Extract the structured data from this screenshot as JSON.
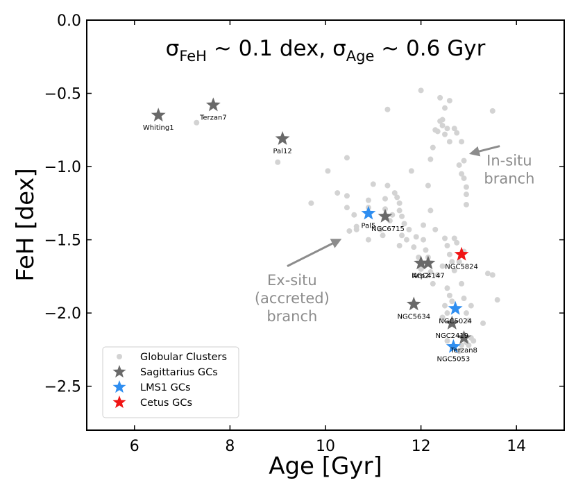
{
  "chart_data": {
    "type": "scatter",
    "title": {
      "sym1": "σ",
      "sub1": "FeH",
      "mid1": " ~ 0.1 dex, ",
      "sym2": "σ",
      "sub2": "Age",
      "mid2": " ~ 0.6 Gyr"
    },
    "xlabel": "Age [Gyr]",
    "ylabel": "FeH [dex]",
    "xlim": [
      5,
      15
    ],
    "ylim": [
      -2.8,
      0.0
    ],
    "xticks": [
      6,
      8,
      10,
      12,
      14
    ],
    "yticks": [
      0.0,
      -0.5,
      -1.0,
      -1.5,
      -2.0,
      -2.5
    ],
    "xtick_labels": [
      "6",
      "8",
      "10",
      "12",
      "14"
    ],
    "ytick_labels": [
      "0.0",
      "−0.5",
      "−1.0",
      "−1.5",
      "−2.0",
      "−2.5"
    ],
    "legend": {
      "position": "lower-left",
      "entries": [
        "Globular Clusters",
        "Sagittarius GCs",
        "LMS1 GCs",
        "Cetus GCs"
      ]
    },
    "annotations": [
      {
        "lines": [
          "In-situ",
          "branch"
        ],
        "text_at": [
          13.85,
          -1.02
        ],
        "arrow_from": [
          13.65,
          -0.86
        ],
        "arrow_to": [
          13.05,
          -0.91
        ]
      },
      {
        "lines": [
          "Ex-situ",
          "(accreted)",
          "branch"
        ],
        "text_at": [
          9.3,
          -1.9
        ],
        "arrow_from": [
          9.2,
          -1.68
        ],
        "arrow_to": [
          10.3,
          -1.5
        ]
      }
    ],
    "colors": {
      "gc": "#d3d3d3",
      "sagittarius": "#696969",
      "lms1": "#2f8ef0",
      "cetus": "#f01414",
      "annotation": "#8c8c8c"
    },
    "series": [
      {
        "name": "Globular Clusters",
        "marker": "circle",
        "points": [
          [
            7.3,
            -0.7
          ],
          [
            9.0,
            -0.97
          ],
          [
            9.7,
            -1.25
          ],
          [
            10.05,
            -1.03
          ],
          [
            10.25,
            -1.18
          ],
          [
            10.45,
            -1.2
          ],
          [
            10.45,
            -1.28
          ],
          [
            10.45,
            -0.94
          ],
          [
            10.6,
            -1.33
          ],
          [
            10.65,
            -1.41
          ],
          [
            10.65,
            -1.43
          ],
          [
            10.9,
            -1.23
          ],
          [
            11.0,
            -1.12
          ],
          [
            10.9,
            -1.5
          ],
          [
            10.9,
            -1.28
          ],
          [
            11.15,
            -1.43
          ],
          [
            11.2,
            -1.47
          ],
          [
            11.25,
            -1.29
          ],
          [
            11.25,
            -1.22
          ],
          [
            11.3,
            -1.13
          ],
          [
            11.35,
            -1.37
          ],
          [
            11.4,
            -1.33
          ],
          [
            11.45,
            -1.18
          ],
          [
            11.5,
            -1.21
          ],
          [
            11.55,
            -1.25
          ],
          [
            11.55,
            -1.3
          ],
          [
            11.6,
            -1.34
          ],
          [
            11.6,
            -1.47
          ],
          [
            11.65,
            -1.39
          ],
          [
            11.7,
            -1.5
          ],
          [
            11.75,
            -1.43
          ],
          [
            11.3,
            -0.61
          ],
          [
            11.8,
            -1.03
          ],
          [
            11.85,
            -1.55
          ],
          [
            11.9,
            -1.48
          ],
          [
            11.95,
            -1.62
          ],
          [
            12.0,
            -1.7
          ],
          [
            12.05,
            -1.4
          ],
          [
            12.05,
            -1.5
          ],
          [
            12.1,
            -1.57
          ],
          [
            12.15,
            -1.62
          ],
          [
            12.2,
            -1.72
          ],
          [
            12.25,
            -1.8
          ],
          [
            12.3,
            -1.43
          ],
          [
            12.35,
            -1.74
          ],
          [
            12.15,
            -1.13
          ],
          [
            12.2,
            -0.95
          ],
          [
            12.25,
            -0.87
          ],
          [
            12.3,
            -0.75
          ],
          [
            12.35,
            -0.76
          ],
          [
            12.4,
            -0.69
          ],
          [
            12.45,
            -0.68
          ],
          [
            12.5,
            -0.6
          ],
          [
            12.55,
            -0.74
          ],
          [
            12.6,
            -0.55
          ],
          [
            12.45,
            -0.72
          ],
          [
            12.6,
            -0.83
          ],
          [
            12.4,
            -0.53
          ],
          [
            12.0,
            -0.48
          ],
          [
            12.5,
            -0.78
          ],
          [
            12.7,
            -0.74
          ],
          [
            12.75,
            -0.77
          ],
          [
            12.85,
            -0.83
          ],
          [
            12.8,
            -0.99
          ],
          [
            12.9,
            -0.96
          ],
          [
            12.85,
            -1.05
          ],
          [
            12.9,
            -1.08
          ],
          [
            12.95,
            -1.14
          ],
          [
            12.95,
            -1.19
          ],
          [
            12.95,
            -1.26
          ],
          [
            13.5,
            -0.62
          ],
          [
            12.2,
            -1.3
          ],
          [
            12.5,
            -1.49
          ],
          [
            12.55,
            -1.54
          ],
          [
            12.6,
            -1.6
          ],
          [
            12.65,
            -1.65
          ],
          [
            12.7,
            -1.49
          ],
          [
            12.75,
            -1.52
          ],
          [
            12.7,
            -1.71
          ],
          [
            12.55,
            -1.83
          ],
          [
            12.6,
            -1.88
          ],
          [
            12.65,
            -1.92
          ],
          [
            12.45,
            -1.68
          ],
          [
            12.5,
            -1.95
          ],
          [
            12.55,
            -2.0
          ],
          [
            12.45,
            -2.03
          ],
          [
            12.8,
            -1.65
          ],
          [
            12.85,
            -1.8
          ],
          [
            12.9,
            -1.9
          ],
          [
            12.95,
            -2.0
          ],
          [
            13.0,
            -2.05
          ],
          [
            13.05,
            -1.95
          ],
          [
            12.55,
            -2.19
          ],
          [
            12.8,
            -2.26
          ],
          [
            12.85,
            -2.22
          ],
          [
            12.9,
            -2.15
          ],
          [
            12.95,
            -2.2
          ],
          [
            13.0,
            -2.22
          ],
          [
            13.05,
            -2.17
          ],
          [
            13.1,
            -2.19
          ],
          [
            13.3,
            -2.07
          ],
          [
            13.4,
            -1.73
          ],
          [
            13.5,
            -1.74
          ],
          [
            13.6,
            -1.91
          ],
          [
            12.9,
            -1.58
          ],
          [
            10.5,
            -1.44
          ],
          [
            11.55,
            -1.54
          ]
        ]
      },
      {
        "name": "Sagittarius GCs",
        "marker": "star",
        "points": [
          {
            "x": 6.5,
            "y": -0.65,
            "label": "Whiting1",
            "pos": "below"
          },
          {
            "x": 7.65,
            "y": -0.58,
            "label": "Terzan7",
            "pos": "below"
          },
          {
            "x": 9.1,
            "y": -0.81,
            "label": "Pal12",
            "pos": "below"
          },
          {
            "x": 11.25,
            "y": -1.34,
            "label": "NGC6715",
            "pos": "below-left"
          },
          {
            "x": 12.0,
            "y": -1.66,
            "label": "Arp2",
            "pos": "below"
          },
          {
            "x": 12.15,
            "y": -1.66,
            "label": "NGC4147",
            "pos": "below"
          },
          {
            "x": 11.85,
            "y": -1.94,
            "label": "NGC5634",
            "pos": "below"
          },
          {
            "x": 12.65,
            "y": -2.07,
            "label": "NGC2419",
            "pos": "below"
          },
          {
            "x": 12.9,
            "y": -2.17,
            "label": "Terzan8",
            "pos": "below"
          }
        ]
      },
      {
        "name": "LMS1 GCs",
        "marker": "star",
        "points": [
          {
            "x": 10.9,
            "y": -1.32,
            "label": "Pal5",
            "pos": "below"
          },
          {
            "x": 12.72,
            "y": -1.97,
            "label": "NGC5024",
            "pos": "below"
          },
          {
            "x": 12.68,
            "y": -2.23,
            "label": "NGC5053",
            "pos": "below"
          }
        ]
      },
      {
        "name": "Cetus GCs",
        "marker": "star",
        "points": [
          {
            "x": 12.85,
            "y": -1.6,
            "label": "NGC5824",
            "pos": "below"
          }
        ]
      }
    ]
  }
}
